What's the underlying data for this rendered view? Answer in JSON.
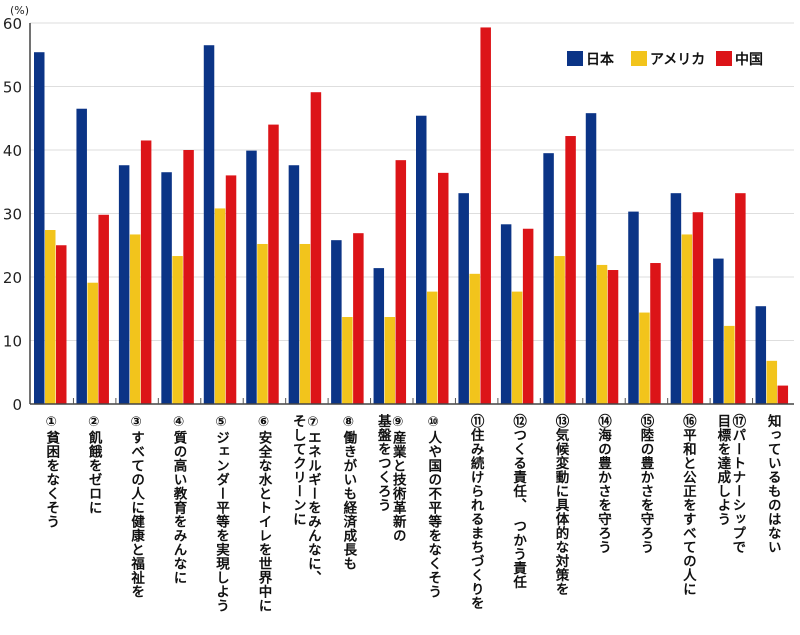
{
  "chart_data": {
    "type": "bar",
    "title": "",
    "xlabel": "",
    "ylabel": "(%)",
    "ylim": [
      0,
      60
    ],
    "yticks": [
      0,
      10,
      20,
      30,
      40,
      50,
      60
    ],
    "grid": true,
    "legend_position": "top-right",
    "categories": [
      "①貧困をなくそう",
      "②飢餓をゼロに",
      "③すべての人に健康と福祉を",
      "④質の高い教育をみんなに",
      "⑤ジェンダー平等を実現しよう",
      "⑥安全な水とトイレを世界中に",
      "⑦エネルギーをみんなに、\nそしてクリーンに",
      "⑧働きがいも経済成長も",
      "⑨産業と技術革新の\n基盤をつくろう",
      "⑩人や国の不平等をなくそう",
      "⑪住み続けられるまちづくりを",
      "⑫つくる責任、　つかう責任",
      "⑬気候変動に具体的な対策を",
      "⑭海の豊かさを守ろう",
      "⑮陸の豊かさを守ろう",
      "⑯平和と公正をすべての人に",
      "⑰パートナーシップで\n目標を達成しよう",
      "知っているものはない"
    ],
    "series": [
      {
        "name": "日本",
        "color": "#0B3486",
        "values": [
          55.4,
          46.5,
          37.6,
          36.5,
          56.5,
          39.9,
          37.6,
          25.8,
          21.4,
          45.4,
          33.2,
          28.3,
          39.5,
          45.8,
          30.3,
          33.2,
          22.9,
          15.4
        ]
      },
      {
        "name": "アメリカ",
        "color": "#F2C41C",
        "values": [
          27.4,
          19.1,
          26.7,
          23.3,
          30.8,
          25.2,
          25.2,
          13.7,
          13.7,
          17.7,
          20.5,
          17.7,
          23.3,
          21.9,
          14.4,
          26.7,
          12.3,
          6.8
        ]
      },
      {
        "name": "中国",
        "color": "#DC1418",
        "values": [
          25.0,
          29.8,
          41.5,
          40.0,
          36.0,
          44.0,
          49.1,
          26.9,
          38.4,
          36.4,
          59.3,
          27.6,
          42.2,
          21.1,
          22.2,
          30.2,
          33.2,
          2.9
        ]
      }
    ]
  }
}
